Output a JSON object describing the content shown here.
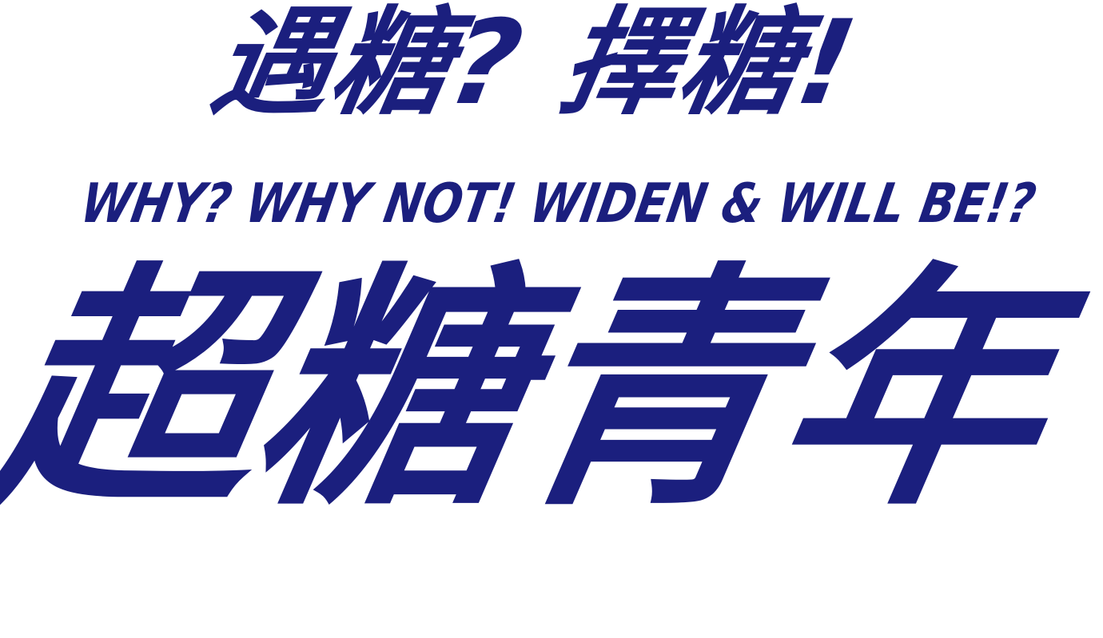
{
  "logo": {
    "headline": "遇糖? 擇糖!",
    "tagline": "WHY? WHY NOT! WIDEN & WILL BE!?",
    "title": "超糖青年"
  },
  "colors": {
    "brand": "#1b1f7e",
    "background": "#ffffff"
  }
}
